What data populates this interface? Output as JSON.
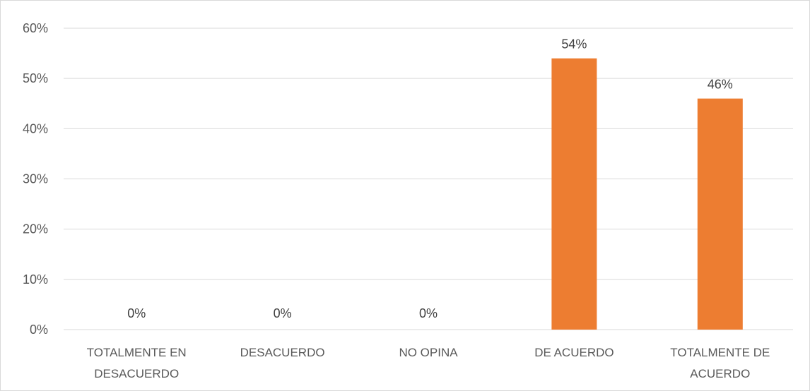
{
  "chart_data": {
    "type": "bar",
    "categories": [
      [
        "TOTALMENTE EN",
        "DESACUERDO"
      ],
      [
        "DESACUERDO"
      ],
      [
        "NO OPINA"
      ],
      [
        "DE ACUERDO"
      ],
      [
        "TOTALMENTE DE",
        "ACUERDO"
      ]
    ],
    "values": [
      0,
      0,
      0,
      54,
      46
    ],
    "data_labels": [
      "0%",
      "0%",
      "0%",
      "54%",
      "46%"
    ],
    "yticks": [
      "0%",
      "10%",
      "20%",
      "30%",
      "40%",
      "50%",
      "60%"
    ],
    "ylim": [
      0,
      60
    ],
    "bar_color": "#ED7D31",
    "grid": true,
    "title": "",
    "xlabel": "",
    "ylabel": ""
  }
}
